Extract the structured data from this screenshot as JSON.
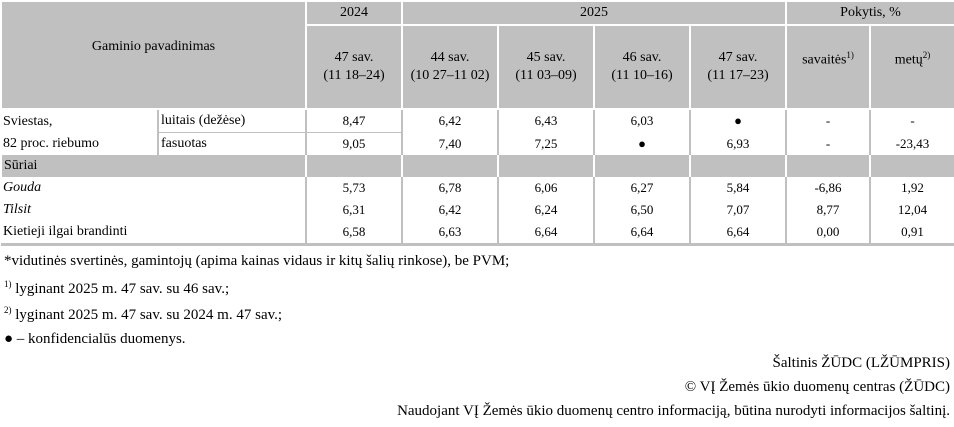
{
  "header": {
    "product_name": "Gaminio pavadinimas",
    "year_2024": "2024",
    "year_2025": "2025",
    "change": "Pokytis, %",
    "weeks": [
      {
        "week": "47 sav.",
        "dates": "(11 18–24)"
      },
      {
        "week": "44 sav.",
        "dates": "(10 27–11 02)"
      },
      {
        "week": "45 sav.",
        "dates": "(11 03–09)"
      },
      {
        "week": "46 sav.",
        "dates": "(11 10–16)"
      },
      {
        "week": "47 sav.",
        "dates": "(11 17–23)"
      }
    ],
    "weekly": "savaitės",
    "weekly_sup": "1)",
    "yearly": "metų",
    "yearly_sup": "2)"
  },
  "rows": {
    "butter_label_1": "Sviestas,",
    "butter_label_2": "82 proc. riebumo",
    "butter_block": {
      "name": "luitais (dežėse)",
      "values": [
        "8,47",
        "6,42",
        "6,43",
        "6,03",
        "●",
        "-",
        "-"
      ]
    },
    "butter_packed": {
      "name": "fasuotas",
      "values": [
        "9,05",
        "7,40",
        "7,25",
        "●",
        "6,93",
        "-",
        "-23,43"
      ]
    },
    "cheese_section": "Sūriai",
    "gouda": {
      "name": "Gouda",
      "values": [
        "5,73",
        "6,78",
        "6,06",
        "6,27",
        "5,84",
        "-6,86",
        "1,92"
      ]
    },
    "tilsit": {
      "name": "Tilsit",
      "values": [
        "6,31",
        "6,42",
        "6,24",
        "6,50",
        "7,07",
        "8,77",
        "12,04"
      ]
    },
    "hard": {
      "name": "Kietieji ilgai brandinti",
      "values": [
        "6,58",
        "6,63",
        "6,64",
        "6,64",
        "6,64",
        "0,00",
        "0,91"
      ]
    }
  },
  "notes": {
    "n0": "*vidutinės svertinės, gamintojų  (apima kainas vidaus ir kitų šalių rinkose), be PVM;",
    "n1_sup": "1)",
    "n1": " lyginant 2025 m. 47 sav. su 46 sav.;",
    "n2_sup": "2)",
    "n2": " lyginant 2025 m. 47 sav. su 2024 m. 47 sav.;",
    "n3": "● – konfidencialūs duomenys.",
    "source": "Šaltinis ŽŪDC (LŽŪMPRIS)",
    "copyright": "© VĮ Žemės ūkio duomenų centras (ŽŪDC)",
    "usage": "Naudojant VĮ Žemės ūkio duomenų centro informaciją, būtina nurodyti informacijos šaltinį."
  },
  "colors": {
    "header_bg": "#c0c0c0"
  }
}
